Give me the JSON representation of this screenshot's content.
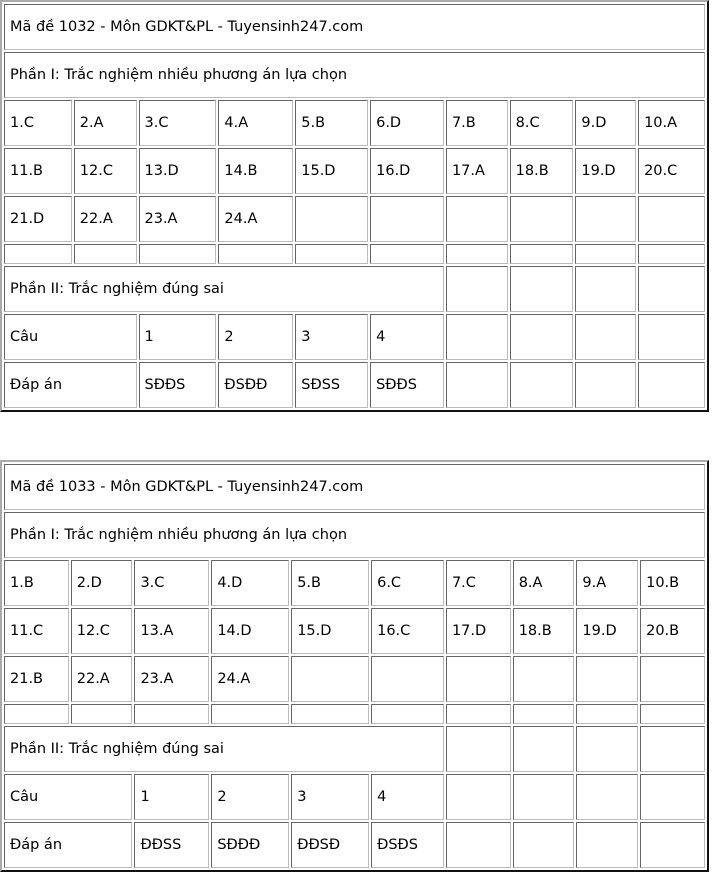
{
  "tables": [
    {
      "title": "Mã đề 1032 - Môn GDKT&PL - Tuyensinh247.com",
      "part1_label": "Phần I: Trắc nghiệm nhiều phương án lựa chọn",
      "part1_answers": [
        "1.C",
        "2.A",
        "3.C",
        "4.A",
        "5.B",
        "6.D",
        "7.B",
        "8.C",
        "9.D",
        "10.A",
        "11.B",
        "12.C",
        "13.D",
        "14.B",
        "15.D",
        "16.D",
        "17.A",
        "18.B",
        "19.D",
        "20.C",
        "21.D",
        "22.A",
        "23.A",
        "24.A"
      ],
      "part2_label": "Phần II: Trắc nghiệm đúng sai",
      "question_header": "Câu",
      "questions": [
        "1",
        "2",
        "3",
        "4"
      ],
      "answer_header": "Đáp án",
      "part2_answers": [
        "SĐĐS",
        "ĐSĐĐ",
        "SĐSS",
        "SĐĐS"
      ]
    },
    {
      "title": "Mã đề 1033 - Môn GDKT&PL - Tuyensinh247.com",
      "part1_label": "Phần I: Trắc nghiệm nhiều phương án lựa chọn",
      "part1_answers": [
        "1.B",
        "2.D",
        "3.C",
        "4.D",
        "5.B",
        "6.C",
        "7.C",
        "8.A",
        "9.A",
        "10.B",
        "11.C",
        "12.C",
        "13.A",
        "14.D",
        "15.D",
        "16.C",
        "17.D",
        "18.B",
        "19.D",
        "20.B",
        "21.B",
        "22.A",
        "23.A",
        "24.A"
      ],
      "part2_label": "Phần II: Trắc nghiệm đúng sai",
      "question_header": "Câu",
      "questions": [
        "1",
        "2",
        "3",
        "4"
      ],
      "answer_header": "Đáp án",
      "part2_answers": [
        "ĐĐSS",
        "SĐĐĐ",
        "ĐĐSĐ",
        "ĐSĐS"
      ]
    }
  ]
}
